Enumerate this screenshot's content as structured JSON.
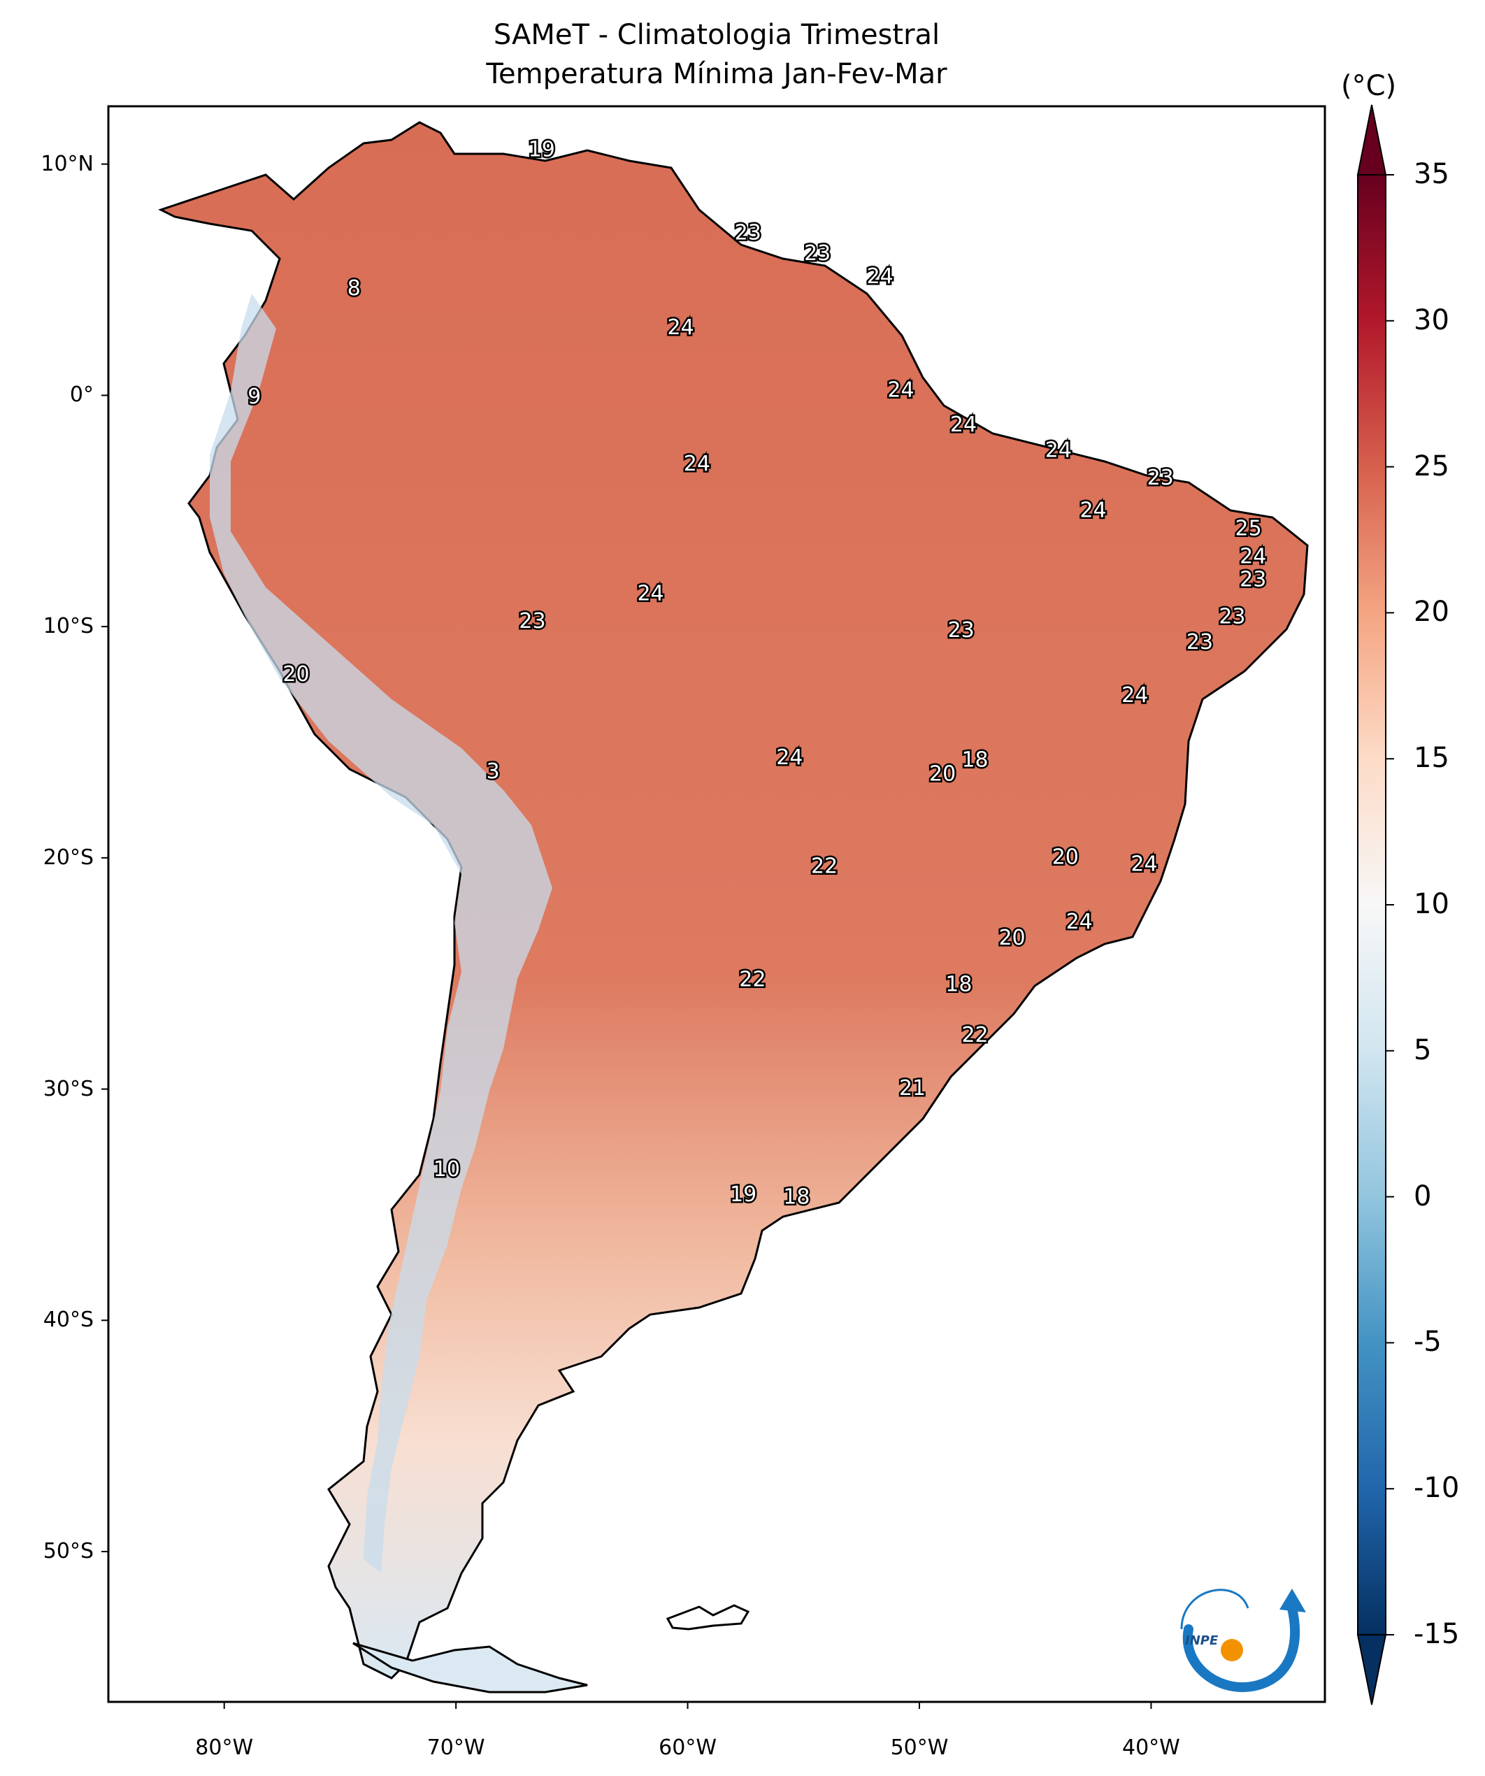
{
  "title": {
    "line1": "SAMeT - Climatologia Trimestral",
    "line2": "Temperatura Mínima   Jan-Fev-Mar"
  },
  "map": {
    "lon_range": [
      -85,
      -32.5
    ],
    "lat_range": [
      -56.5,
      12.5
    ],
    "lat_ticks": [
      {
        "value": 10,
        "label": "10°N"
      },
      {
        "value": 0,
        "label": "0°"
      },
      {
        "value": -10,
        "label": "10°S"
      },
      {
        "value": -20,
        "label": "20°S"
      },
      {
        "value": -30,
        "label": "30°S"
      },
      {
        "value": -40,
        "label": "40°S"
      },
      {
        "value": -50,
        "label": "50°S"
      }
    ],
    "lon_ticks": [
      {
        "value": -80,
        "label": "80°W"
      },
      {
        "value": -70,
        "label": "70°W"
      },
      {
        "value": -60,
        "label": "60°W"
      },
      {
        "value": -50,
        "label": "50°W"
      },
      {
        "value": -40,
        "label": "40°W"
      }
    ],
    "annotations": [
      {
        "text": "19",
        "lon": -66.3,
        "lat": 10.6
      },
      {
        "text": "23",
        "lon": -57.4,
        "lat": 7.0
      },
      {
        "text": "23",
        "lon": -54.4,
        "lat": 6.1
      },
      {
        "text": "24",
        "lon": -51.7,
        "lat": 5.1
      },
      {
        "text": "8",
        "lon": -74.4,
        "lat": 4.6
      },
      {
        "text": "24",
        "lon": -60.3,
        "lat": 2.9
      },
      {
        "text": "24",
        "lon": -50.8,
        "lat": 0.2
      },
      {
        "text": "9",
        "lon": -78.7,
        "lat": -0.1
      },
      {
        "text": "24",
        "lon": -48.1,
        "lat": -1.3
      },
      {
        "text": "24",
        "lon": -44.0,
        "lat": -2.4
      },
      {
        "text": "24",
        "lon": -59.6,
        "lat": -3.0
      },
      {
        "text": "23",
        "lon": -39.6,
        "lat": -3.6
      },
      {
        "text": "24",
        "lon": -42.5,
        "lat": -5.0
      },
      {
        "text": "25",
        "lon": -35.8,
        "lat": -5.8
      },
      {
        "text": "24",
        "lon": -35.6,
        "lat": -7.0
      },
      {
        "text": "23",
        "lon": -35.6,
        "lat": -8.0
      },
      {
        "text": "24",
        "lon": -61.6,
        "lat": -8.6
      },
      {
        "text": "23",
        "lon": -36.5,
        "lat": -9.6
      },
      {
        "text": "23",
        "lon": -66.7,
        "lat": -9.8
      },
      {
        "text": "23",
        "lon": -48.2,
        "lat": -10.2
      },
      {
        "text": "23",
        "lon": -37.9,
        "lat": -10.7
      },
      {
        "text": "20",
        "lon": -76.9,
        "lat": -12.1
      },
      {
        "text": "24",
        "lon": -40.7,
        "lat": -13.0
      },
      {
        "text": "24",
        "lon": -55.6,
        "lat": -15.7
      },
      {
        "text": "18",
        "lon": -47.6,
        "lat": -15.8
      },
      {
        "text": "3",
        "lon": -68.4,
        "lat": -16.3
      },
      {
        "text": "20",
        "lon": -49.0,
        "lat": -16.4
      },
      {
        "text": "20",
        "lon": -43.7,
        "lat": -20.0
      },
      {
        "text": "24",
        "lon": -40.3,
        "lat": -20.3
      },
      {
        "text": "22",
        "lon": -54.1,
        "lat": -20.4
      },
      {
        "text": "24",
        "lon": -43.1,
        "lat": -22.8
      },
      {
        "text": "20",
        "lon": -46.0,
        "lat": -23.5
      },
      {
        "text": "22",
        "lon": -57.2,
        "lat": -25.3
      },
      {
        "text": "18",
        "lon": -48.3,
        "lat": -25.5
      },
      {
        "text": "22",
        "lon": -47.6,
        "lat": -27.7
      },
      {
        "text": "21",
        "lon": -50.3,
        "lat": -30.0
      },
      {
        "text": "10",
        "lon": -70.4,
        "lat": -33.5
      },
      {
        "text": "19",
        "lon": -57.6,
        "lat": -34.6
      },
      {
        "text": "18",
        "lon": -55.3,
        "lat": -34.7
      }
    ]
  },
  "colorbar": {
    "unit": "(°C)",
    "min": -15,
    "max": 35,
    "ticks": [
      35,
      30,
      25,
      20,
      15,
      10,
      5,
      0,
      -5,
      -10,
      -15
    ],
    "tick_labels": [
      "35",
      "30",
      "25",
      "20",
      "15",
      "10",
      "5",
      "0",
      "-5",
      "-10",
      "-15"
    ],
    "colormap": "RdBu_r",
    "colors": [
      "#053061",
      "#2166ac",
      "#4393c3",
      "#92c5de",
      "#d1e5f0",
      "#f7f7f7",
      "#fddbc7",
      "#f4a582",
      "#d6604d",
      "#b2182b",
      "#67001f"
    ]
  },
  "logo": {
    "text": "INPE",
    "colors": {
      "swoosh": "#1a78c2",
      "dot": "#f39200"
    }
  }
}
